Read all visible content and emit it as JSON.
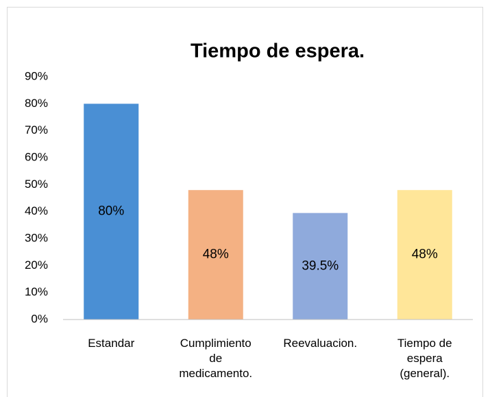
{
  "chart_data": {
    "type": "bar",
    "title": "Tiempo de espera.",
    "categories": [
      "Estandar",
      "Cumplimiento de medicamento.",
      "Reevaluacion.",
      "Tiempo de espera (general)."
    ],
    "values": [
      80,
      48,
      39.5,
      48
    ],
    "value_labels": [
      "80%",
      "48%",
      "39.5%",
      "48%"
    ],
    "colors": [
      "#4a8fd4",
      "#f4b183",
      "#8faadc",
      "#ffe699"
    ],
    "ylim": [
      0,
      90
    ],
    "yticks": [
      {
        "value": 0,
        "label": "0%"
      },
      {
        "value": 10,
        "label": "10%"
      },
      {
        "value": 20,
        "label": "20%"
      },
      {
        "value": 30,
        "label": "30%"
      },
      {
        "value": 40,
        "label": "40%"
      },
      {
        "value": 50,
        "label": "50%"
      },
      {
        "value": 60,
        "label": "60%"
      },
      {
        "value": 70,
        "label": "70%"
      },
      {
        "value": 80,
        "label": "80%"
      },
      {
        "value": 90,
        "label": "90%"
      }
    ],
    "grid": false
  }
}
